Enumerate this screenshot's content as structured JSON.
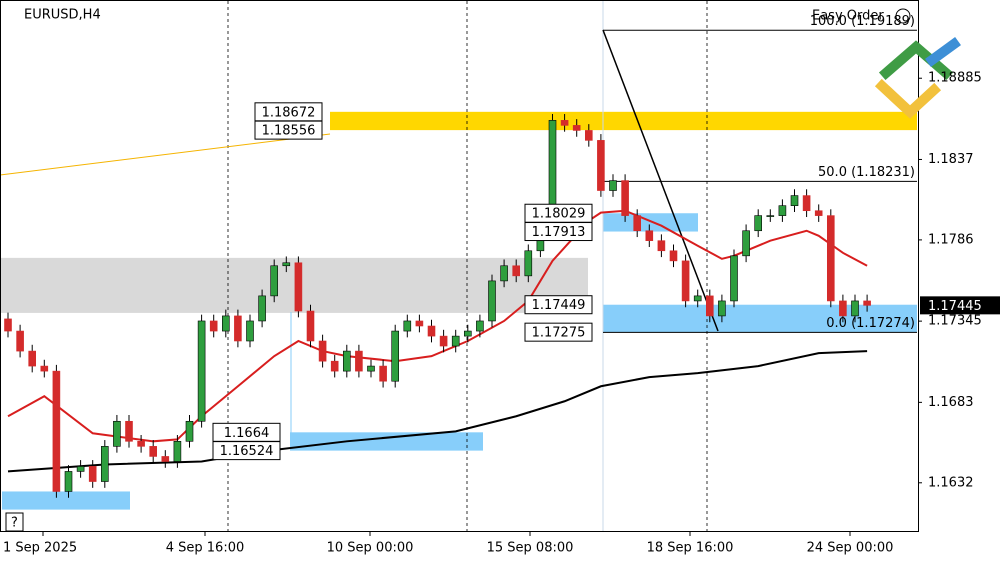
{
  "chart_data": {
    "type": "candlestick",
    "title": "EURUSD,H4",
    "button": "Easy Order",
    "help": "?",
    "up_color": "#2e9e3e",
    "down_color": "#d42b2b",
    "ylim": [
      1.16008,
      1.19381
    ],
    "yticks": [
      1.18885,
      1.1837,
      1.1786,
      1.17345,
      1.1683,
      1.1632
    ],
    "x_labels": [
      "1 Sep 2025",
      "4 Sep 16:00",
      "10 Sep 00:00",
      "15 Sep 08:00",
      "18 Sep 16:00",
      "24 Sep 00:00"
    ],
    "current_price": 1.17445,
    "candles": [
      [
        1.17359,
        1.17399,
        1.17242,
        1.17282
      ],
      [
        1.17282,
        1.17322,
        1.17115,
        1.17155
      ],
      [
        1.17155,
        1.17195,
        1.1702,
        1.1706
      ],
      [
        1.1706,
        1.171,
        1.16988,
        1.17028
      ],
      [
        1.17028,
        1.17068,
        1.16225,
        1.16265
      ],
      [
        1.16265,
        1.16432,
        1.16225,
        1.16392
      ],
      [
        1.16392,
        1.16464,
        1.16352,
        1.16424
      ],
      [
        1.16424,
        1.16464,
        1.16288,
        1.16328
      ],
      [
        1.16328,
        1.16591,
        1.16288,
        1.16551
      ],
      [
        1.16551,
        1.1675,
        1.16511,
        1.1671
      ],
      [
        1.1671,
        1.1675,
        1.16543,
        1.16583
      ],
      [
        1.16583,
        1.16623,
        1.16511,
        1.16551
      ],
      [
        1.16551,
        1.16591,
        1.16447,
        1.16487
      ],
      [
        1.16487,
        1.16527,
        1.16415,
        1.16455
      ],
      [
        1.16455,
        1.16623,
        1.16415,
        1.16583
      ],
      [
        1.16583,
        1.1675,
        1.16543,
        1.1671
      ],
      [
        1.1671,
        1.17386,
        1.1667,
        1.17346
      ],
      [
        1.17346,
        1.17386,
        1.17242,
        1.17282
      ],
      [
        1.17282,
        1.17418,
        1.17242,
        1.17378
      ],
      [
        1.17378,
        1.17418,
        1.17179,
        1.17219
      ],
      [
        1.17219,
        1.17386,
        1.17179,
        1.17346
      ],
      [
        1.17346,
        1.17545,
        1.17306,
        1.17505
      ],
      [
        1.17505,
        1.17736,
        1.17465,
        1.17696
      ],
      [
        1.17696,
        1.17755,
        1.17656,
        1.17715
      ],
      [
        1.17715,
        1.17755,
        1.17369,
        1.17409
      ],
      [
        1.17409,
        1.17449,
        1.17179,
        1.17219
      ],
      [
        1.17219,
        1.17259,
        1.17051,
        1.17091
      ],
      [
        1.17091,
        1.17131,
        1.16988,
        1.17028
      ],
      [
        1.17028,
        1.17195,
        1.16988,
        1.17155
      ],
      [
        1.17155,
        1.17195,
        1.16988,
        1.17028
      ],
      [
        1.17028,
        1.171,
        1.16988,
        1.1706
      ],
      [
        1.1706,
        1.171,
        1.16924,
        1.16964
      ],
      [
        1.16964,
        1.17322,
        1.16924,
        1.17282
      ],
      [
        1.17282,
        1.17386,
        1.17242,
        1.17346
      ],
      [
        1.17346,
        1.17386,
        1.17274,
        1.17314
      ],
      [
        1.17314,
        1.17354,
        1.1721,
        1.1725
      ],
      [
        1.1725,
        1.1729,
        1.17147,
        1.17187
      ],
      [
        1.17187,
        1.1729,
        1.17147,
        1.1725
      ],
      [
        1.1725,
        1.17322,
        1.1721,
        1.17282
      ],
      [
        1.17282,
        1.17386,
        1.17242,
        1.17346
      ],
      [
        1.17346,
        1.1764,
        1.17306,
        1.176
      ],
      [
        1.176,
        1.17736,
        1.1756,
        1.17696
      ],
      [
        1.17696,
        1.17736,
        1.17592,
        1.17632
      ],
      [
        1.17632,
        1.17831,
        1.17592,
        1.17791
      ],
      [
        1.17791,
        1.18054,
        1.17751,
        1.18014
      ],
      [
        1.18014,
        1.18658,
        1.17974,
        1.18618
      ],
      [
        1.18618,
        1.18658,
        1.18546,
        1.18586
      ],
      [
        1.18586,
        1.18626,
        1.18514,
        1.18554
      ],
      [
        1.18554,
        1.18594,
        1.18451,
        1.18491
      ],
      [
        1.18491,
        1.18531,
        1.18133,
        1.18173
      ],
      [
        1.18173,
        1.18276,
        1.18133,
        1.18236
      ],
      [
        1.18236,
        1.18276,
        1.17974,
        1.18014
      ],
      [
        1.18014,
        1.18054,
        1.17878,
        1.17918
      ],
      [
        1.17918,
        1.17958,
        1.17815,
        1.17855
      ],
      [
        1.17855,
        1.17895,
        1.17751,
        1.17791
      ],
      [
        1.17791,
        1.17831,
        1.17687,
        1.17727
      ],
      [
        1.17727,
        1.17767,
        1.17433,
        1.17473
      ],
      [
        1.17473,
        1.17545,
        1.17433,
        1.17505
      ],
      [
        1.17505,
        1.17545,
        1.17338,
        1.17378
      ],
      [
        1.17378,
        1.17513,
        1.17338,
        1.17473
      ],
      [
        1.17473,
        1.17799,
        1.17433,
        1.17759
      ],
      [
        1.17759,
        1.17958,
        1.17719,
        1.17918
      ],
      [
        1.17918,
        1.18054,
        1.17878,
        1.18014
      ],
      [
        1.18014,
        1.18054,
        1.17974,
        1.18014
      ],
      [
        1.18014,
        1.18117,
        1.17974,
        1.18077
      ],
      [
        1.18077,
        1.18181,
        1.18037,
        1.18141
      ],
      [
        1.18141,
        1.18181,
        1.18005,
        1.18045
      ],
      [
        1.18045,
        1.18085,
        1.17974,
        1.18014
      ],
      [
        1.18014,
        1.18054,
        1.17433,
        1.17473
      ],
      [
        1.17473,
        1.17513,
        1.17338,
        1.17378
      ],
      [
        1.17378,
        1.17513,
        1.17338,
        1.17473
      ],
      [
        1.17473,
        1.17513,
        1.17405,
        1.17445
      ]
    ],
    "ma_series": [
      {
        "color": "#d81e1e",
        "x": [
          0,
          3,
          7,
          12,
          14,
          16,
          19,
          22,
          24,
          26,
          28,
          32,
          35,
          38,
          41,
          43,
          45,
          48,
          49,
          51,
          54,
          57,
          59,
          60,
          63,
          66,
          67,
          69,
          71
        ],
        "values": [
          1.16742,
          1.16869,
          1.16634,
          1.16583,
          1.16595,
          1.16742,
          1.16932,
          1.17123,
          1.17219,
          1.17155,
          1.17123,
          1.17091,
          1.17123,
          1.17219,
          1.17346,
          1.17473,
          1.17727,
          1.17982,
          1.18033,
          1.18045,
          1.1795,
          1.17823,
          1.1774,
          1.17759,
          1.17855,
          1.17918,
          1.17886,
          1.17778,
          1.17696
        ]
      },
      {
        "color": "#000000",
        "x": [
          0,
          8,
          16,
          21,
          28,
          37,
          42,
          46,
          49,
          53,
          57,
          62,
          67,
          71
        ],
        "values": [
          1.16392,
          1.16436,
          1.16455,
          1.16519,
          1.16583,
          1.16646,
          1.16742,
          1.16837,
          1.16932,
          1.1699,
          1.17015,
          1.1706,
          1.17142,
          1.17155
        ]
      }
    ],
    "zones": [
      {
        "color": "#ffd700",
        "high": 1.18672,
        "low": 1.18556
      },
      {
        "color": "#87cefa",
        "high": 1.18029,
        "low": 1.17913
      },
      {
        "color": "#87cefa",
        "high": 1.17449,
        "low": 1.17275
      },
      {
        "color": "#87cefa",
        "high": 1.1664,
        "low": 1.16524
      },
      {
        "color": "#87cefa",
        "high": 1.16265,
        "low": 1.1615
      },
      {
        "color": "#d9d9d9",
        "high": 1.17746,
        "low": 1.17397
      }
    ],
    "fib_levels": [
      {
        "value": 1.19189,
        "label": "100.0 (1.19189)"
      },
      {
        "value": 1.18231,
        "label": "50.0 (1.18231)"
      },
      {
        "value": 1.17274,
        "label": "0.0 (1.17274)"
      }
    ]
  }
}
